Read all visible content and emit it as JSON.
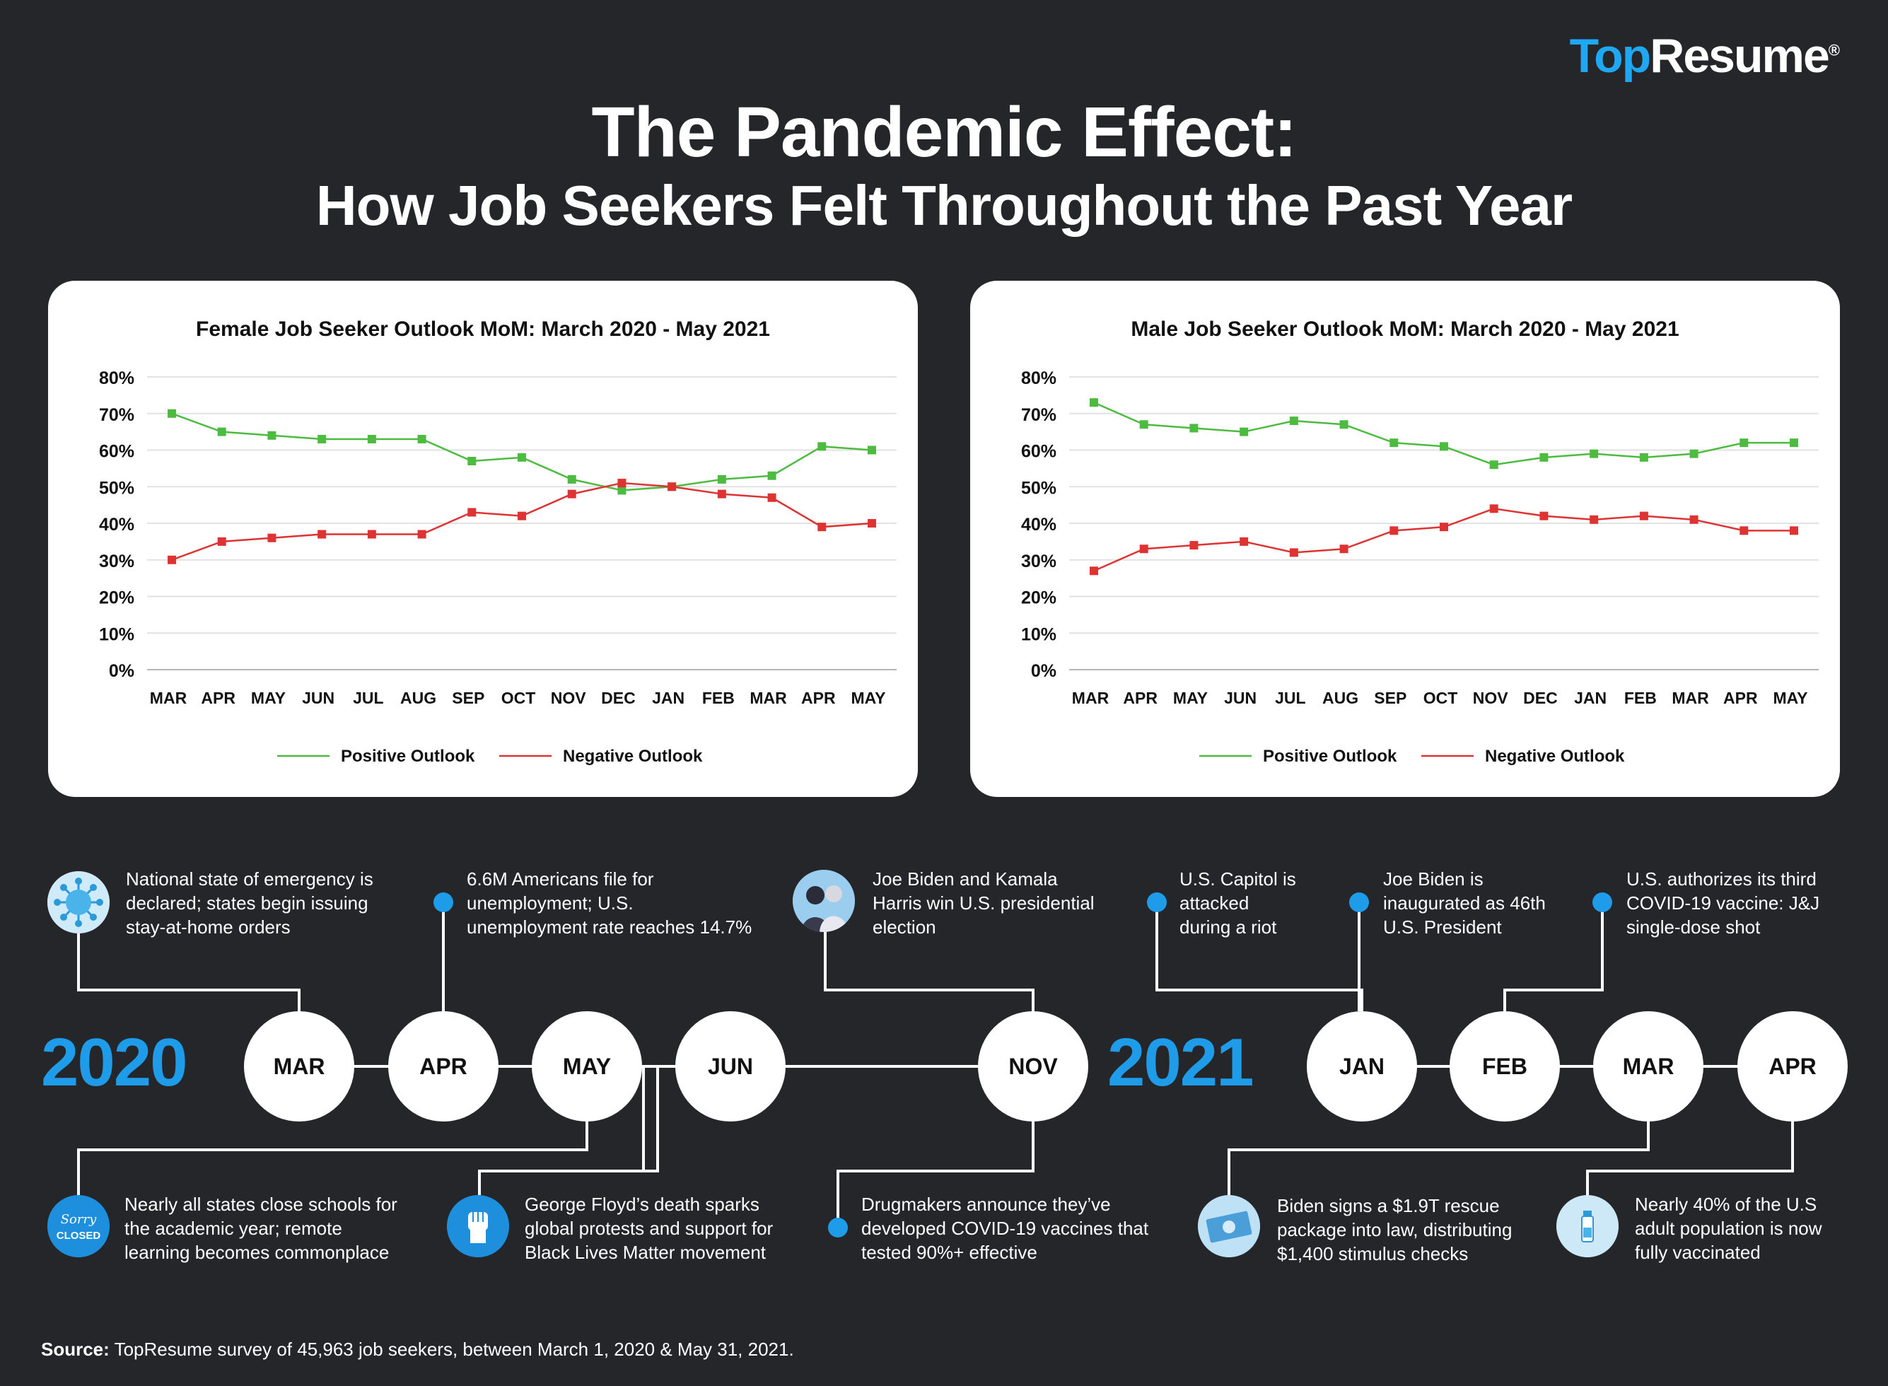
{
  "brand": {
    "top": "Top",
    "resume": "Resume",
    "reg": "®"
  },
  "title": {
    "line1": "The Pandemic Effect:",
    "line2": "How Job Seekers Felt Throughout the Past Year"
  },
  "colors": {
    "positive": "#4cbb3f",
    "negative": "#dd3333",
    "accent": "#1e9be9",
    "background": "#252629"
  },
  "chart_data": [
    {
      "type": "line",
      "title": "Female Job Seeker Outlook MoM: March 2020 - May 2021",
      "categories": [
        "MAR",
        "APR",
        "MAY",
        "JUN",
        "JUL",
        "AUG",
        "SEP",
        "OCT",
        "NOV",
        "DEC",
        "JAN",
        "FEB",
        "MAR",
        "APR",
        "MAY"
      ],
      "yticks": [
        "0%",
        "10%",
        "20%",
        "30%",
        "40%",
        "50%",
        "60%",
        "70%",
        "80%"
      ],
      "ylim": [
        0,
        80
      ],
      "series": [
        {
          "name": "Positive Outlook",
          "color": "#4cbb3f",
          "values": [
            70,
            65,
            64,
            63,
            63,
            63,
            57,
            58,
            52,
            49,
            50,
            52,
            53,
            61,
            60
          ]
        },
        {
          "name": "Negative Outlook",
          "color": "#dd3333",
          "values": [
            30,
            35,
            36,
            37,
            37,
            37,
            43,
            42,
            48,
            51,
            50,
            48,
            47,
            39,
            40
          ]
        }
      ]
    },
    {
      "type": "line",
      "title": "Male Job Seeker Outlook MoM: March 2020 - May 2021",
      "categories": [
        "MAR",
        "APR",
        "MAY",
        "JUN",
        "JUL",
        "AUG",
        "SEP",
        "OCT",
        "NOV",
        "DEC",
        "JAN",
        "FEB",
        "MAR",
        "APR",
        "MAY"
      ],
      "yticks": [
        "0%",
        "10%",
        "20%",
        "30%",
        "40%",
        "50%",
        "60%",
        "70%",
        "80%"
      ],
      "ylim": [
        0,
        80
      ],
      "series": [
        {
          "name": "Positive Outlook",
          "color": "#4cbb3f",
          "values": [
            73,
            67,
            66,
            65,
            68,
            67,
            62,
            61,
            56,
            58,
            59,
            58,
            59,
            62,
            62
          ]
        },
        {
          "name": "Negative Outlook",
          "color": "#dd3333",
          "values": [
            27,
            33,
            34,
            35,
            32,
            33,
            38,
            39,
            44,
            42,
            41,
            42,
            41,
            38,
            38
          ]
        }
      ]
    }
  ],
  "timeline": {
    "year2020": "2020",
    "year2021": "2021",
    "months": {
      "mar20": "MAR",
      "apr20": "APR",
      "may20": "MAY",
      "jun20": "JUN",
      "nov20": "NOV",
      "jan21": "JAN",
      "feb21": "FEB",
      "mar21": "MAR",
      "apr21": "APR"
    },
    "events": {
      "mar20": [
        "National state of emergency is",
        "declared; states begin issuing",
        "stay-at-home orders"
      ],
      "apr20": [
        "6.6M Americans file for",
        "unemployment; U.S.",
        "unemployment rate reaches 14.7%"
      ],
      "may20": [
        "Nearly all states close schools for",
        "the academic year; remote",
        "learning becomes commonplace"
      ],
      "jun20": [
        "George Floyd’s death sparks",
        "global protests and support for",
        "Black Lives Matter movement"
      ],
      "nov20a": [
        "Joe Biden and Kamala",
        "Harris win U.S. presidential",
        "election"
      ],
      "nov20b": [
        "Drugmakers announce they’ve",
        "developed COVID-19 vaccines that",
        "tested 90%+ effective"
      ],
      "jan21a": [
        "U.S. Capitol is",
        "attacked",
        "during a riot"
      ],
      "jan21b": [
        "Joe Biden is",
        "inaugurated as 46th",
        "U.S. President"
      ],
      "feb21": [
        "U.S. authorizes its third",
        "COVID-19 vaccine: J&J",
        "single-dose shot"
      ],
      "mar21": [
        "Biden signs a $1.9T rescue",
        "package into law, distributing",
        "$1,400 stimulus checks"
      ],
      "apr21": [
        "Nearly 40% of the U.S",
        "adult population is now",
        "fully vaccinated"
      ]
    },
    "icon_text": {
      "sorry": "Sorry",
      "closed": "CLOSED"
    }
  },
  "source": {
    "label": "Source:",
    "text": " TopResume survey of 45,963 job seekers, between March 1, 2020 & May 31, 2021."
  }
}
